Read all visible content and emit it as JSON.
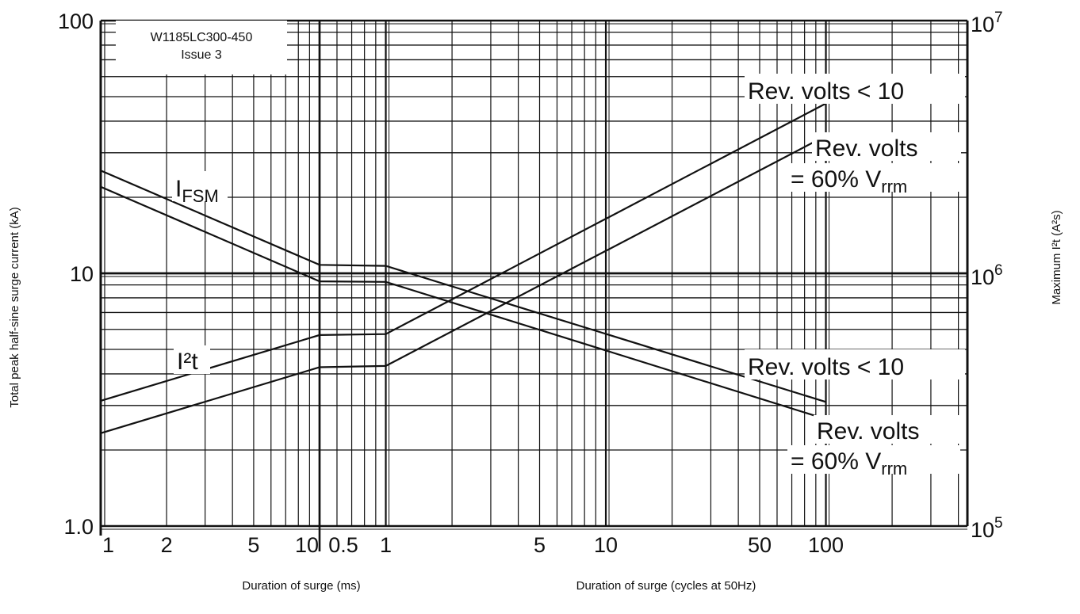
{
  "chart_data": {
    "type": "line",
    "document": {
      "id": "W1185LC300-450",
      "issue": "Issue 3"
    },
    "left_axis": {
      "title": "Total peak half-sine surge current (kA)",
      "scale": "log",
      "range": [
        1,
        100
      ],
      "ticks": [
        {
          "value": 1,
          "label": "1.0"
        },
        {
          "value": 10,
          "label": "10"
        },
        {
          "value": 100,
          "label": "100"
        }
      ]
    },
    "right_axis": {
      "title": "Maximum I²t (A²s)",
      "scale": "log",
      "range": [
        100000,
        10000000
      ],
      "ticks": [
        {
          "value": 100000,
          "base": "10",
          "exp": "5"
        },
        {
          "value": 1000000,
          "base": "10",
          "exp": "6"
        },
        {
          "value": 10000000,
          "base": "10",
          "exp": "7"
        }
      ]
    },
    "x_axes": [
      {
        "title": "Duration of surge (ms)",
        "scale": "log",
        "range": [
          1,
          10
        ],
        "tick_labels": [
          {
            "value": 1,
            "label": "1"
          },
          {
            "value": 2,
            "label": "2"
          },
          {
            "value": 5,
            "label": "5"
          },
          {
            "value": 10,
            "label": "10"
          }
        ]
      },
      {
        "title": "Duration of surge (cycles at 50Hz)",
        "scale": "log",
        "range": [
          0.5,
          100
        ],
        "tick_labels": [
          {
            "value": 0.5,
            "label": "0.5"
          },
          {
            "value": 1,
            "label": "1"
          },
          {
            "value": 5,
            "label": "5"
          },
          {
            "value": 10,
            "label": "10"
          },
          {
            "value": 50,
            "label": "50"
          },
          {
            "value": 100,
            "label": "100"
          }
        ]
      }
    ],
    "grid": true,
    "curve_labels": [
      {
        "id": "ifsm",
        "text": "I",
        "sub": "FSM",
        "tail": ""
      },
      {
        "id": "i2t",
        "text": "I²t",
        "sub": "",
        "tail": ""
      },
      {
        "id": "i2t-lt10",
        "text": "Rev. volts < 10",
        "sub": "",
        "tail": ""
      },
      {
        "id": "i2t-60a",
        "text": "Rev. volts",
        "sub": "",
        "tail": ""
      },
      {
        "id": "i2t-60b",
        "text": "= 60% V",
        "sub": "rrm",
        "tail": ""
      },
      {
        "id": "ifsm-lt10",
        "text": "Rev. volts < 10",
        "sub": "",
        "tail": ""
      },
      {
        "id": "ifsm-60a",
        "text": "Rev. volts",
        "sub": "",
        "tail": ""
      },
      {
        "id": "ifsm-60b",
        "text": "= 60% V",
        "sub": "rrm",
        "tail": ""
      }
    ],
    "series": [
      {
        "id": "ifsm-rv-lt10",
        "axis": "left",
        "points": [
          [
            "ms",
            1,
            25.5
          ],
          [
            "ms",
            10,
            10.8
          ],
          [
            "cyc",
            1,
            10.7
          ],
          [
            "cyc",
            100,
            3.1
          ]
        ]
      },
      {
        "id": "ifsm-rv-60",
        "axis": "left",
        "points": [
          [
            "ms",
            1,
            22
          ],
          [
            "ms",
            10,
            9.3
          ],
          [
            "cyc",
            1,
            9.25
          ],
          [
            "cyc",
            100,
            2.65
          ]
        ]
      },
      {
        "id": "i2t-rv-lt10",
        "axis": "right",
        "points": [
          [
            "ms",
            1,
            313000
          ],
          [
            "ms",
            10,
            570000
          ],
          [
            "cyc",
            1,
            575000
          ],
          [
            "cyc",
            100,
            4700000
          ]
        ]
      },
      {
        "id": "i2t-rv-60",
        "axis": "right",
        "points": [
          [
            "ms",
            1,
            233000
          ],
          [
            "ms",
            10,
            425000
          ],
          [
            "cyc",
            1,
            430000
          ],
          [
            "cyc",
            100,
            3500000
          ]
        ]
      }
    ]
  }
}
